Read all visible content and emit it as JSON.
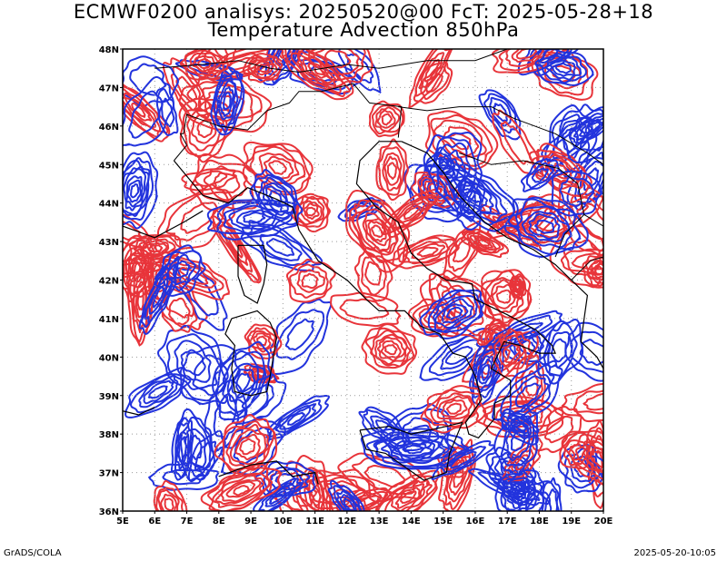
{
  "header": {
    "title_line1": "ECMWF0200 analisys: 20250520@00 FcT: 2025-05-28+18",
    "title_line2": "Temperature Advection 850hPa"
  },
  "map": {
    "lat_labels": [
      "48N",
      "47N",
      "46N",
      "45N",
      "44N",
      "43N",
      "42N",
      "41N",
      "40N",
      "39N",
      "38N",
      "37N",
      "36N"
    ],
    "lon_labels": [
      "5E",
      "6E",
      "7E",
      "8E",
      "9E",
      "10E",
      "11E",
      "12E",
      "13E",
      "14E",
      "15E",
      "16E",
      "17E",
      "18E",
      "19E",
      "20E"
    ],
    "colors": {
      "warm_advection": "#e8343a",
      "cold_advection": "#2233dd",
      "coastline": "#000000",
      "grid": "#999999"
    }
  },
  "footer": {
    "software": "GrADS/COLA",
    "timestamp": "2025-05-20-10:05"
  }
}
